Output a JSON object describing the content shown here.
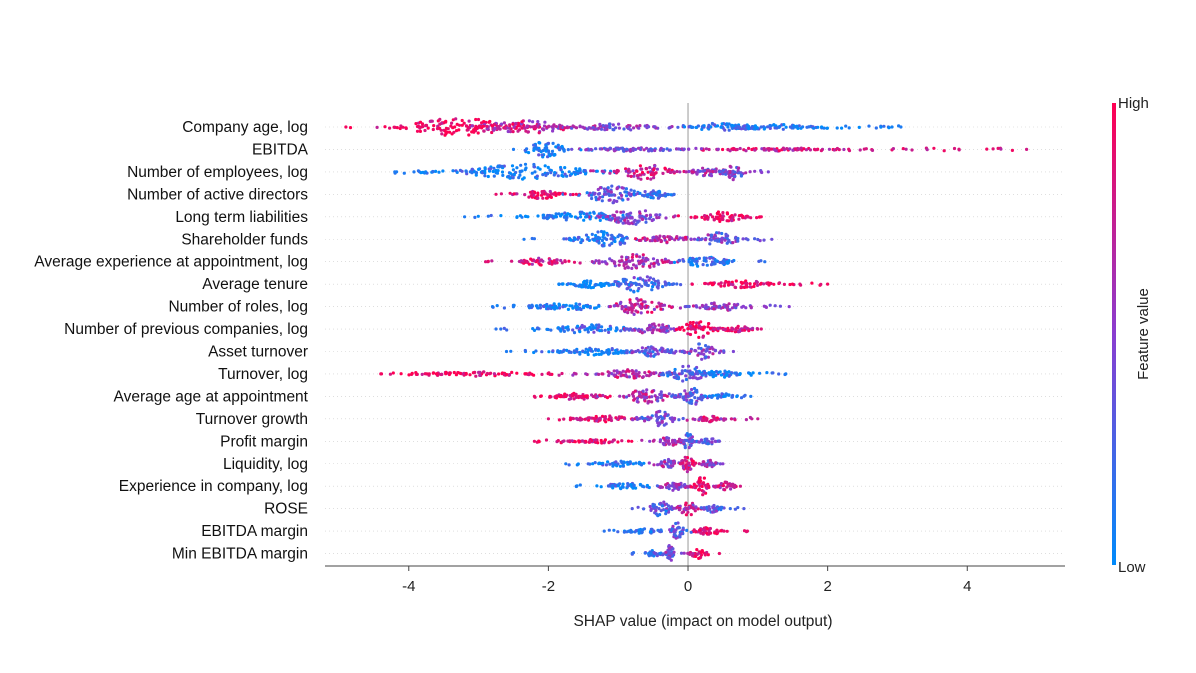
{
  "chart_data": {
    "type": "scatter",
    "subtype": "shap-beeswarm",
    "title": "",
    "xlabel": "SHAP value (impact on model output)",
    "ylabel": "",
    "xlim": [
      -5.2,
      5.4
    ],
    "xticks": [
      -4,
      -2,
      0,
      2,
      4
    ],
    "xtick_labels": [
      "-4",
      "-2",
      "0",
      "2",
      "4"
    ],
    "grid": false,
    "colorbar": {
      "label": "Feature value",
      "high_label": "High",
      "low_label": "Low",
      "high_color": "#ff0052",
      "mid_color": "#8a3dd0",
      "low_color": "#008bfb"
    },
    "features": [
      {
        "name": "Company age, log",
        "min": -4.9,
        "max": 3.05,
        "clusters": [
          {
            "c": -3.3,
            "w": 1.0,
            "h": 1.0,
            "t": 0.95
          },
          {
            "c": -2.3,
            "w": 0.9,
            "h": 0.7,
            "t": 0.75
          },
          {
            "c": -1.0,
            "w": 1.0,
            "h": 0.35,
            "t": 0.5
          },
          {
            "c": 0.5,
            "w": 0.6,
            "h": 0.45,
            "t": 0.15
          },
          {
            "c": 1.2,
            "w": 0.7,
            "h": 0.3,
            "t": 0.1
          }
        ]
      },
      {
        "name": "EBITDA",
        "min": -2.5,
        "max": 4.85,
        "clusters": [
          {
            "c": -2.05,
            "w": 0.35,
            "h": 0.9,
            "t": 0.1
          },
          {
            "c": -0.8,
            "w": 1.0,
            "h": 0.2,
            "t": 0.4
          },
          {
            "c": 1.2,
            "w": 0.9,
            "h": 0.18,
            "t": 0.8
          }
        ]
      },
      {
        "name": "Number of employees, log",
        "min": -4.2,
        "max": 1.15,
        "clusters": [
          {
            "c": -2.3,
            "w": 1.1,
            "h": 0.9,
            "t": 0.1
          },
          {
            "c": -0.6,
            "w": 0.45,
            "h": 0.9,
            "t": 0.75
          },
          {
            "c": 0.3,
            "w": 0.35,
            "h": 0.5,
            "t": 0.55
          },
          {
            "c": 0.65,
            "w": 0.2,
            "h": 0.9,
            "t": 0.45
          }
        ]
      },
      {
        "name": "Number of active directors",
        "min": -2.75,
        "max": -0.2,
        "clusters": [
          {
            "c": -2.1,
            "w": 0.4,
            "h": 0.5,
            "t": 0.9
          },
          {
            "c": -1.1,
            "w": 0.5,
            "h": 0.95,
            "t": 0.35
          },
          {
            "c": -0.5,
            "w": 0.3,
            "h": 0.5,
            "t": 0.2
          }
        ]
      },
      {
        "name": "Long term liabilities",
        "min": -3.2,
        "max": 1.05,
        "clusters": [
          {
            "c": -1.5,
            "w": 0.8,
            "h": 0.55,
            "t": 0.1
          },
          {
            "c": -0.8,
            "w": 0.5,
            "h": 0.9,
            "t": 0.5
          },
          {
            "c": 0.45,
            "w": 0.5,
            "h": 0.55,
            "t": 0.95
          }
        ]
      },
      {
        "name": "Shareholder funds",
        "min": -2.35,
        "max": 1.2,
        "clusters": [
          {
            "c": -1.2,
            "w": 0.5,
            "h": 0.9,
            "t": 0.1
          },
          {
            "c": -0.3,
            "w": 0.5,
            "h": 0.4,
            "t": 0.7
          },
          {
            "c": 0.45,
            "w": 0.35,
            "h": 0.75,
            "t": 0.4
          }
        ]
      },
      {
        "name": "Average experience at appointment, log",
        "min": -2.9,
        "max": 1.1,
        "clusters": [
          {
            "c": -2.1,
            "w": 0.4,
            "h": 0.4,
            "t": 0.85
          },
          {
            "c": -0.75,
            "w": 0.6,
            "h": 0.85,
            "t": 0.65
          },
          {
            "c": 0.25,
            "w": 0.5,
            "h": 0.55,
            "t": 0.15
          }
        ]
      },
      {
        "name": "Average tenure",
        "min": -1.85,
        "max": 2.0,
        "clusters": [
          {
            "c": -1.4,
            "w": 0.4,
            "h": 0.4,
            "t": 0.05
          },
          {
            "c": -0.7,
            "w": 0.45,
            "h": 0.95,
            "t": 0.25
          },
          {
            "c": 0.75,
            "w": 0.6,
            "h": 0.4,
            "t": 0.95
          }
        ]
      },
      {
        "name": "Number of roles, log",
        "min": -2.8,
        "max": 1.45,
        "clusters": [
          {
            "c": -1.7,
            "w": 0.7,
            "h": 0.4,
            "t": 0.1
          },
          {
            "c": -0.7,
            "w": 0.45,
            "h": 0.95,
            "t": 0.7
          },
          {
            "c": 0.5,
            "w": 0.5,
            "h": 0.45,
            "t": 0.5
          }
        ]
      },
      {
        "name": "Number of previous companies, log",
        "min": -2.75,
        "max": 1.05,
        "clusters": [
          {
            "c": -1.4,
            "w": 0.7,
            "h": 0.5,
            "t": 0.15
          },
          {
            "c": -0.5,
            "w": 0.4,
            "h": 0.6,
            "t": 0.55
          },
          {
            "c": 0.15,
            "w": 0.3,
            "h": 1.0,
            "t": 0.95
          },
          {
            "c": 0.7,
            "w": 0.3,
            "h": 0.35,
            "t": 0.85
          }
        ]
      },
      {
        "name": "Asset turnover",
        "min": -2.6,
        "max": 0.65,
        "clusters": [
          {
            "c": -1.3,
            "w": 0.7,
            "h": 0.4,
            "t": 0.1
          },
          {
            "c": -0.5,
            "w": 0.4,
            "h": 0.55,
            "t": 0.35
          },
          {
            "c": 0.2,
            "w": 0.25,
            "h": 0.9,
            "t": 0.45
          }
        ]
      },
      {
        "name": "Turnover, log",
        "min": -4.4,
        "max": 1.4,
        "clusters": [
          {
            "c": -3.0,
            "w": 1.2,
            "h": 0.25,
            "t": 0.95
          },
          {
            "c": -0.8,
            "w": 0.6,
            "h": 0.5,
            "t": 0.7
          },
          {
            "c": 0.0,
            "w": 0.35,
            "h": 0.95,
            "t": 0.3
          },
          {
            "c": 0.45,
            "w": 0.3,
            "h": 0.4,
            "t": 0.1
          }
        ]
      },
      {
        "name": "Average age at appointment",
        "min": -2.2,
        "max": 0.9,
        "clusters": [
          {
            "c": -1.6,
            "w": 0.5,
            "h": 0.35,
            "t": 0.9
          },
          {
            "c": -0.6,
            "w": 0.5,
            "h": 0.75,
            "t": 0.6
          },
          {
            "c": 0.05,
            "w": 0.25,
            "h": 1.0,
            "t": 0.35
          },
          {
            "c": 0.5,
            "w": 0.25,
            "h": 0.3,
            "t": 0.1
          }
        ]
      },
      {
        "name": "Turnover growth",
        "min": -2.0,
        "max": 1.0,
        "clusters": [
          {
            "c": -1.2,
            "w": 0.5,
            "h": 0.35,
            "t": 0.85
          },
          {
            "c": -0.4,
            "w": 0.3,
            "h": 0.85,
            "t": 0.4
          },
          {
            "c": 0.3,
            "w": 0.3,
            "h": 0.35,
            "t": 0.75
          }
        ]
      },
      {
        "name": "Profit margin",
        "min": -2.2,
        "max": 0.45,
        "clusters": [
          {
            "c": -1.3,
            "w": 0.5,
            "h": 0.2,
            "t": 0.9
          },
          {
            "c": -0.25,
            "w": 0.25,
            "h": 0.5,
            "t": 0.6
          },
          {
            "c": 0.0,
            "w": 0.12,
            "h": 0.9,
            "t": 0.35
          },
          {
            "c": 0.3,
            "w": 0.15,
            "h": 0.35,
            "t": 0.4
          }
        ]
      },
      {
        "name": "Liquidity, log",
        "min": -1.75,
        "max": 0.5,
        "clusters": [
          {
            "c": -1.0,
            "w": 0.4,
            "h": 0.3,
            "t": 0.1
          },
          {
            "c": -0.3,
            "w": 0.2,
            "h": 0.5,
            "t": 0.55
          },
          {
            "c": 0.0,
            "w": 0.12,
            "h": 0.95,
            "t": 0.85
          },
          {
            "c": 0.3,
            "w": 0.15,
            "h": 0.4,
            "t": 0.5
          }
        ]
      },
      {
        "name": "Experience in company, log",
        "min": -1.6,
        "max": 0.75,
        "clusters": [
          {
            "c": -0.9,
            "w": 0.4,
            "h": 0.35,
            "t": 0.1
          },
          {
            "c": -0.2,
            "w": 0.25,
            "h": 0.5,
            "t": 0.5
          },
          {
            "c": 0.2,
            "w": 0.15,
            "h": 1.0,
            "t": 0.95
          },
          {
            "c": 0.55,
            "w": 0.15,
            "h": 0.5,
            "t": 0.8
          }
        ]
      },
      {
        "name": "ROSE",
        "min": -0.8,
        "max": 0.8,
        "clusters": [
          {
            "c": -0.4,
            "w": 0.2,
            "h": 0.85,
            "t": 0.3
          },
          {
            "c": 0.0,
            "w": 0.18,
            "h": 0.8,
            "t": 0.7
          },
          {
            "c": 0.35,
            "w": 0.18,
            "h": 0.4,
            "t": 0.3
          }
        ]
      },
      {
        "name": "EBITDA margin",
        "min": -1.2,
        "max": 0.85,
        "clusters": [
          {
            "c": -0.6,
            "w": 0.3,
            "h": 0.3,
            "t": 0.15
          },
          {
            "c": -0.15,
            "w": 0.12,
            "h": 0.95,
            "t": 0.35
          },
          {
            "c": 0.3,
            "w": 0.25,
            "h": 0.45,
            "t": 0.9
          }
        ]
      },
      {
        "name": "Min EBITDA margin",
        "min": -0.8,
        "max": 0.45,
        "clusters": [
          {
            "c": -0.5,
            "w": 0.15,
            "h": 0.35,
            "t": 0.2
          },
          {
            "c": -0.25,
            "w": 0.08,
            "h": 1.0,
            "t": 0.4
          },
          {
            "c": 0.15,
            "w": 0.15,
            "h": 0.55,
            "t": 0.9
          }
        ]
      }
    ]
  }
}
